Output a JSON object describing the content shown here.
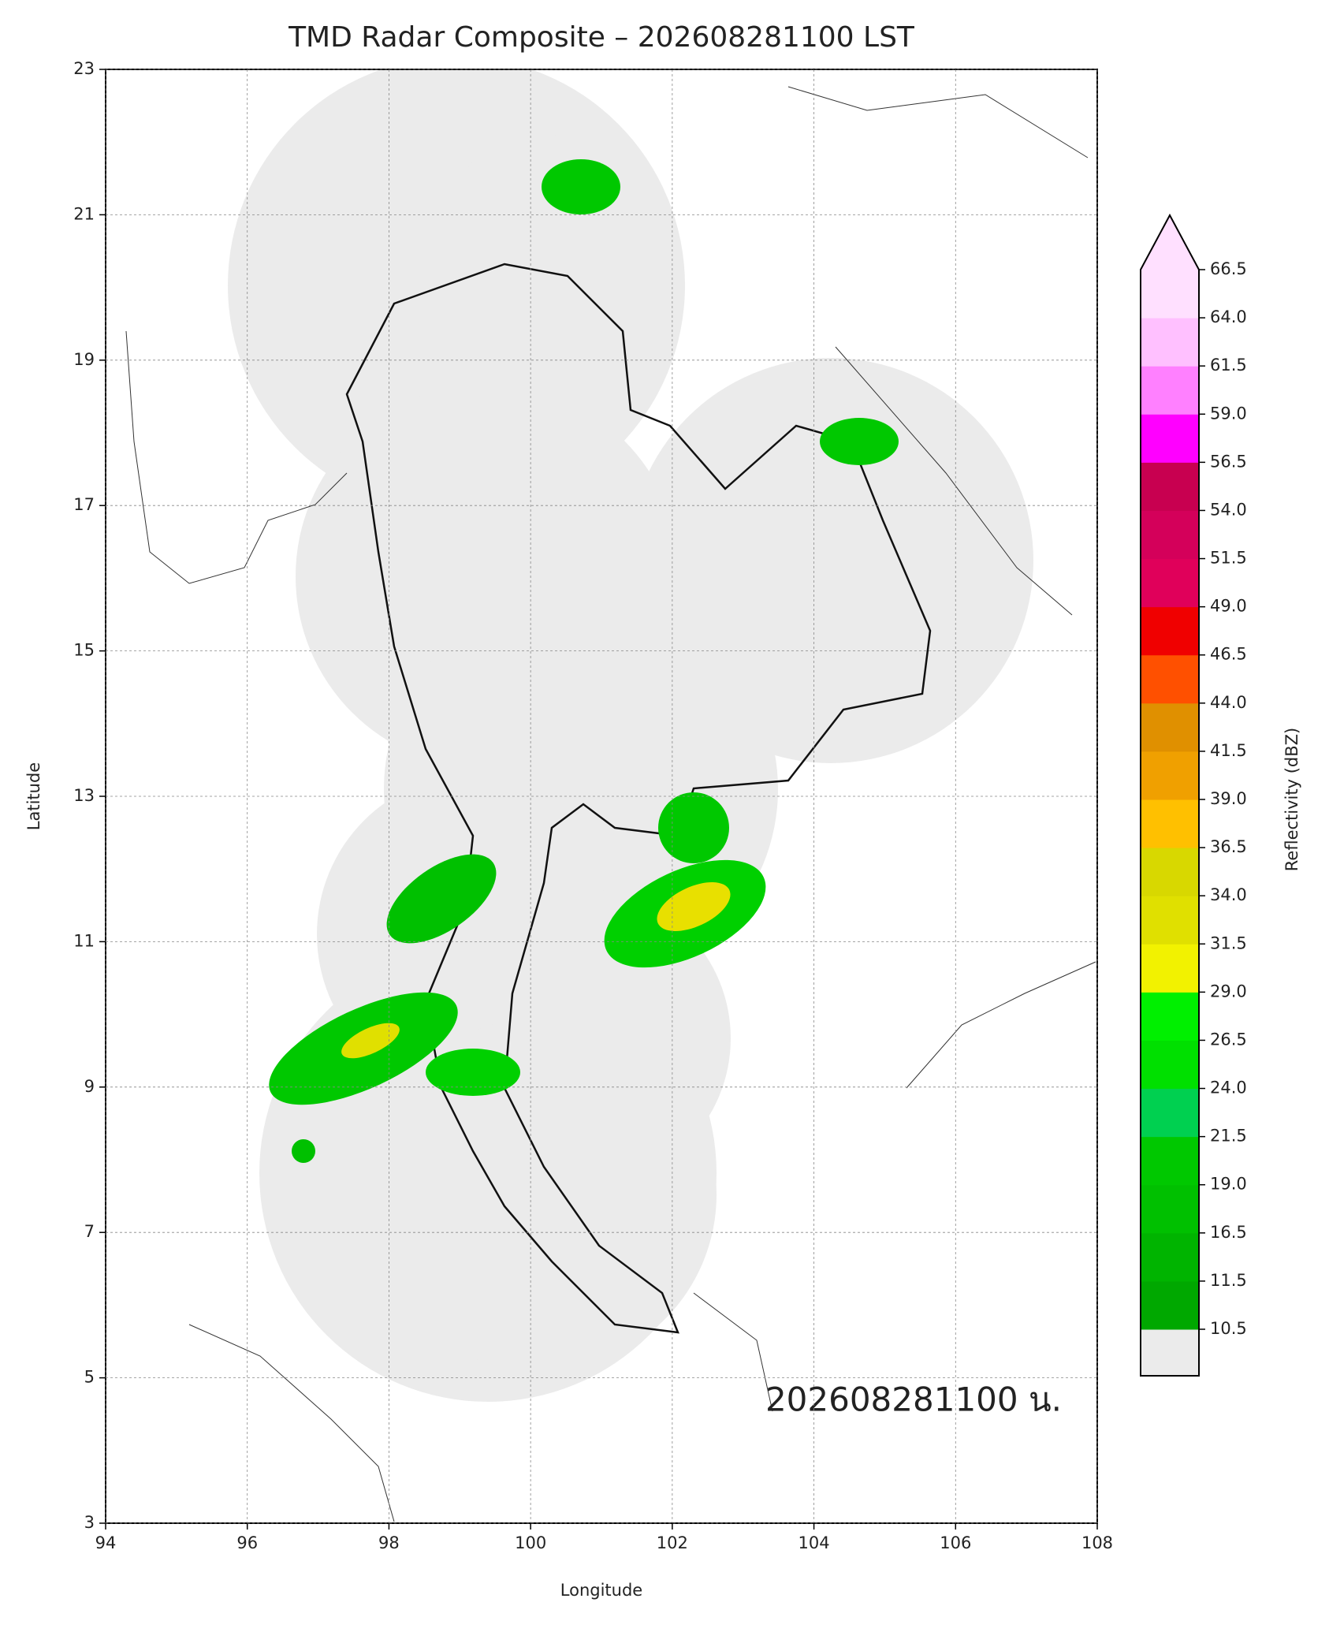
{
  "chart_data": {
    "type": "map",
    "title": "TMD Radar Composite – 202608281100 LST",
    "xlabel": "Longitude",
    "ylabel": "Latitude",
    "xlim": [
      94,
      108
    ],
    "ylim": [
      3,
      23
    ],
    "xticks": [
      94,
      96,
      98,
      100,
      102,
      104,
      106,
      108
    ],
    "yticks": [
      3,
      5,
      7,
      9,
      11,
      13,
      15,
      17,
      19,
      21,
      23
    ],
    "grid": true,
    "annotation": "202608281100 น.",
    "colorbar": {
      "label": "Reflectivity (dBZ)",
      "ticks": [
        10.5,
        11.5,
        16.5,
        {
          "value": 19,
          "label": "19.0"
        },
        21.5,
        {
          "value": 24,
          "label": "24.0"
        },
        26.5,
        {
          "value": 29,
          "label": "29.0"
        },
        31.5,
        {
          "value": 34,
          "label": "34.0"
        },
        36.5,
        {
          "value": 39,
          "label": "39.0"
        },
        41.5,
        {
          "value": 44,
          "label": "44.0"
        },
        46.5,
        {
          "value": 49,
          "label": "49.0"
        },
        51.5,
        {
          "value": 54,
          "label": "54.0"
        },
        56.5,
        {
          "value": 59,
          "label": "59.0"
        },
        61.5,
        {
          "value": 64,
          "label": "64.0"
        },
        66.5
      ],
      "colors": [
        "#00a800",
        "#00b400",
        "#00c000",
        "#00c800",
        "#00d050",
        "#00e000",
        "#00f000",
        "#f2f200",
        "#e0e000",
        "#d8d800",
        "#ffc000",
        "#f0a000",
        "#e09000",
        "#ff5000",
        "#f00000",
        "#e0005a",
        "#d4005a",
        "#c80050",
        "#ff00ff",
        "#ff80ff",
        "#ffc0ff",
        "#ffe0ff"
      ],
      "under_color": "#ebebeb",
      "over_color": "#ffe0ff"
    }
  }
}
